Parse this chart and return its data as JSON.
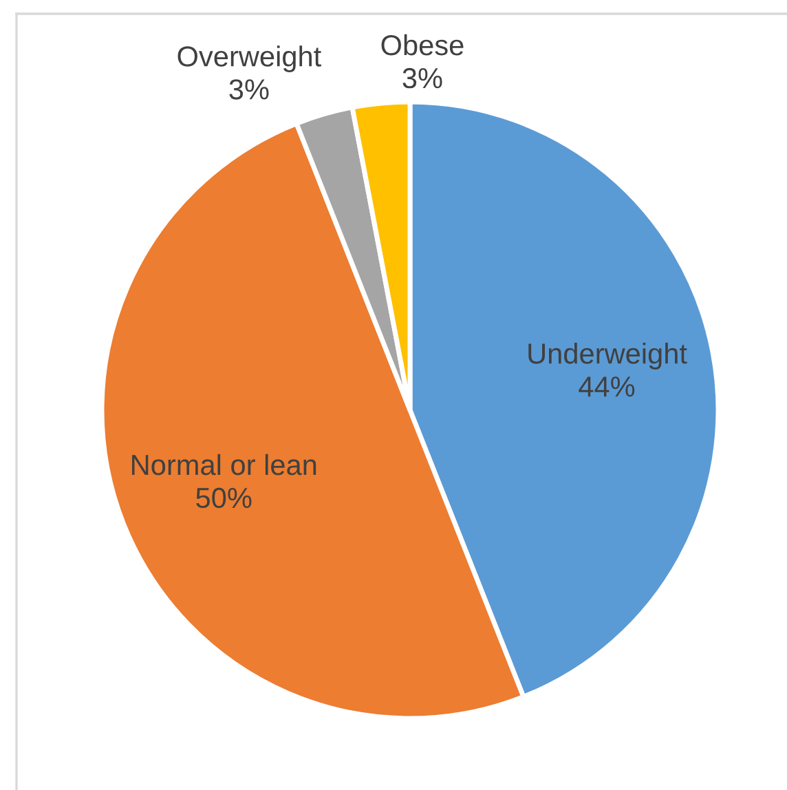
{
  "chart_data": {
    "type": "pie",
    "categories": [
      "Underweight",
      "Normal or lean",
      "Overweight",
      "Obese"
    ],
    "values": [
      44,
      50,
      3,
      3
    ],
    "colors": [
      "#5b9bd5",
      "#ed7d31",
      "#a5a5a5",
      "#ffc000"
    ],
    "value_labels": [
      "44%",
      "50%",
      "3%",
      "3%"
    ]
  }
}
